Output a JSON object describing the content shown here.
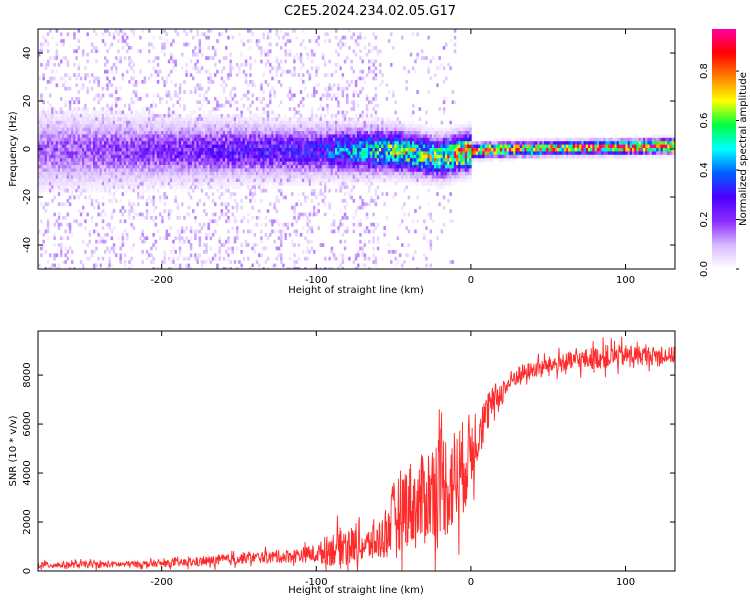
{
  "title": "C2E5.2024.234.02.05.G17",
  "colors": {
    "snr_line": "#ff2a2a",
    "colormap": [
      "#ffffff",
      "#d8b8ff",
      "#8b2cff",
      "#4b00ff",
      "#0060ff",
      "#00ffff",
      "#00ff40",
      "#ffff00",
      "#ff8000",
      "#ff0000",
      "#ff00a0"
    ]
  },
  "chart_data": [
    {
      "type": "heatmap",
      "title": "",
      "xlabel": "Height of straight line (km)",
      "ylabel": "Frequency (Hz)",
      "xlim": [
        -280,
        132
      ],
      "ylim": [
        -50,
        50
      ],
      "xticks": [
        -200,
        -100,
        0,
        100
      ],
      "xtick_labels": [
        "-200",
        "-100",
        "0",
        "100"
      ],
      "yticks": [
        -40,
        -20,
        0,
        20,
        40
      ],
      "ytick_labels": [
        "-40",
        "-20",
        "0",
        "20",
        "40"
      ],
      "colorbar": {
        "label": "Normalized spectral amplitude",
        "range": [
          0,
          0.97
        ],
        "ticks": [
          0,
          0.2,
          0.4,
          0.6,
          0.8
        ],
        "tick_labels": [
          "0.0",
          "0.2",
          "0.4",
          "0.6",
          "0.8"
        ]
      },
      "ridge": {
        "description_points_x": [
          -280,
          -200,
          -100,
          -50,
          -20,
          0,
          50,
          100,
          132
        ],
        "center_freq": [
          0,
          0,
          0,
          0,
          -3,
          0,
          1,
          1.5,
          2
        ],
        "peak_amplitude": [
          0.15,
          0.2,
          0.3,
          0.55,
          0.6,
          0.85,
          0.7,
          0.9,
          0.85
        ]
      },
      "grid": false
    },
    {
      "type": "line",
      "title": "",
      "xlabel": "Height of straight line (km)",
      "ylabel": "SNR (10 * v/v)",
      "xlim": [
        -280,
        132
      ],
      "ylim": [
        0,
        9800
      ],
      "xticks": [
        -200,
        -100,
        0,
        100
      ],
      "xtick_labels": [
        "-200",
        "-100",
        "0",
        "100"
      ],
      "yticks": [
        0,
        2000,
        4000,
        6000,
        8000
      ],
      "ytick_labels": [
        "0",
        "2000",
        "4000",
        "6000",
        "8000"
      ],
      "series": [
        {
          "x": [
            -280,
            -240,
            -200,
            -180,
            -160,
            -140,
            -120,
            -100,
            -90,
            -80,
            -70,
            -60,
            -55,
            -50,
            -45,
            -40,
            -35,
            -30,
            -25,
            -20,
            -15,
            -10,
            -5,
            0,
            5,
            10,
            15,
            20,
            25,
            30,
            40,
            50,
            60,
            70,
            80,
            90,
            100,
            110,
            120,
            132
          ],
          "values": [
            250,
            260,
            300,
            350,
            450,
            550,
            600,
            700,
            900,
            1100,
            1000,
            1200,
            1600,
            2200,
            2600,
            2800,
            2600,
            3000,
            3300,
            3800,
            3500,
            3800,
            4200,
            4900,
            5800,
            6300,
            7000,
            7300,
            7700,
            8000,
            8200,
            8400,
            8500,
            8600,
            8700,
            8750,
            8800,
            8800,
            8800,
            8800
          ],
          "noise_amplitude": [
            150,
            150,
            150,
            200,
            250,
            250,
            300,
            400,
            800,
            900,
            700,
            900,
            1200,
            1600,
            1800,
            2000,
            2000,
            2200,
            2300,
            2600,
            2400,
            2400,
            2200,
            1800,
            1400,
            900,
            700,
            600,
            500,
            450,
            400,
            400,
            450,
            500,
            500,
            550,
            500,
            450,
            400,
            400
          ]
        }
      ],
      "grid": false
    }
  ]
}
